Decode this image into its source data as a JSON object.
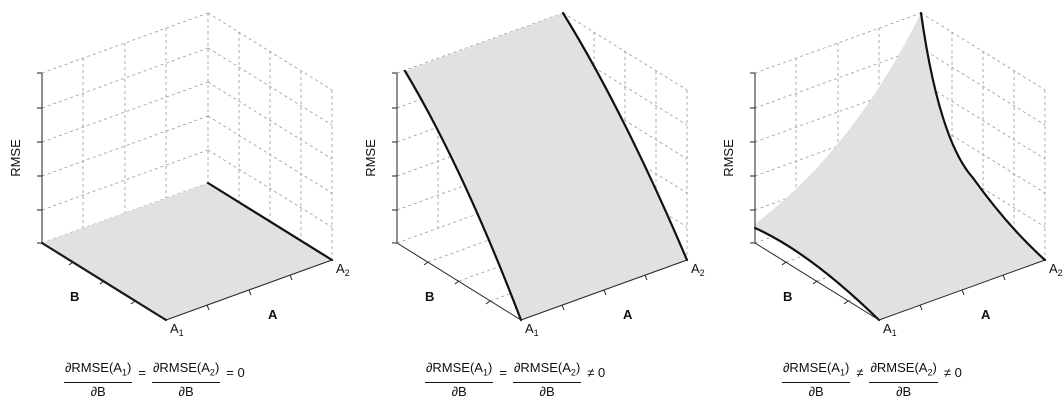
{
  "panels": [
    {
      "ylabel": "RMSE",
      "x_label": "A",
      "y_label": "B",
      "corner_top": "A",
      "corner_top_sub": "2",
      "corner_bottom": "A",
      "corner_bottom_sub": "1",
      "surface": "flat",
      "formula": {
        "num1": "∂RMSE(A",
        "sub1": "1",
        "close1": ")",
        "den1": "∂B",
        "op1": "=",
        "num2": "∂RMSE(A",
        "sub2": "2",
        "close2": ")",
        "den2": "∂B",
        "op2": "= 0"
      }
    },
    {
      "ylabel": "RMSE",
      "x_label": "A",
      "y_label": "B",
      "corner_top": "A",
      "corner_top_sub": "2",
      "corner_bottom": "A",
      "corner_bottom_sub": "1",
      "surface": "linear-in-B",
      "formula": {
        "num1": "∂RMSE(A",
        "sub1": "1",
        "close1": ")",
        "den1": "∂B",
        "op1": "=",
        "num2": "∂RMSE(A",
        "sub2": "2",
        "close2": ")",
        "den2": "∂B",
        "op2": "≠ 0"
      }
    },
    {
      "ylabel": "RMSE",
      "x_label": "A",
      "y_label": "B",
      "corner_top": "A",
      "corner_top_sub": "2",
      "corner_bottom": "A",
      "corner_bottom_sub": "1",
      "surface": "interacting",
      "formula": {
        "num1": "∂RMSE(A",
        "sub1": "1",
        "close1": ")",
        "den1": "∂B",
        "op1": "≠",
        "num2": "∂RMSE(A",
        "sub2": "2",
        "close2": ")",
        "den2": "∂B",
        "op2": "≠ 0"
      }
    }
  ]
}
